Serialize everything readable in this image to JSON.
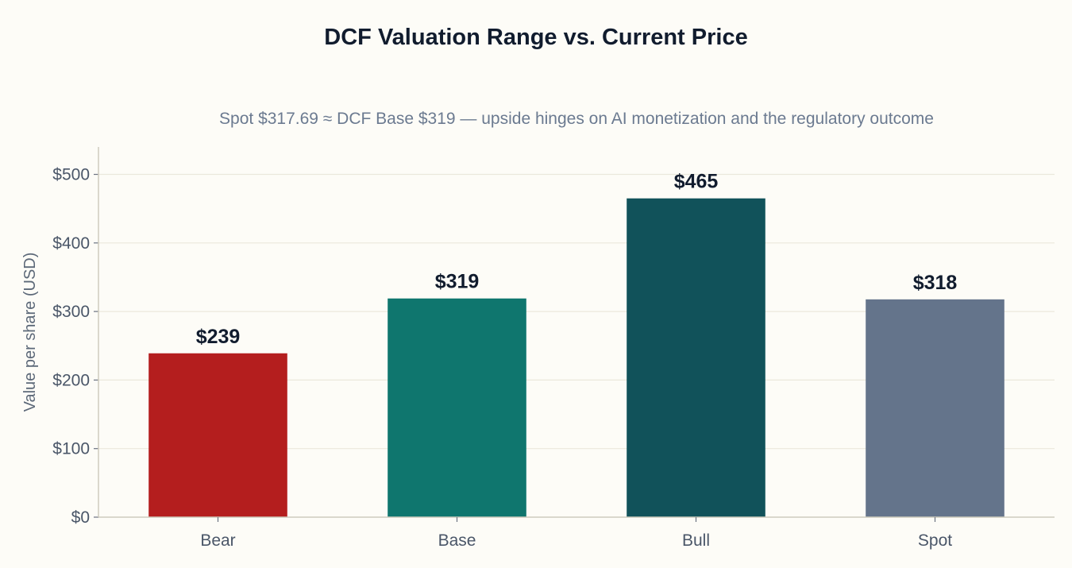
{
  "chart_data": {
    "type": "bar",
    "title": "DCF Valuation Range vs. Current Price",
    "subtitle": "Spot $317.69 ≈ DCF Base $319 — upside hinges on AI monetization and the regulatory outcome",
    "xlabel": "",
    "ylabel": "Value per share (USD)",
    "categories": [
      "Bear",
      "Base",
      "Bull",
      "Spot"
    ],
    "values": [
      239,
      319,
      465,
      317.69
    ],
    "data_labels": [
      "$239",
      "$319",
      "$465",
      "$318"
    ],
    "colors": [
      "#b41e1e",
      "#0f766e",
      "#11525a",
      "#64748b"
    ],
    "ylim": [
      0,
      540
    ],
    "yticks": [
      0,
      100,
      200,
      300,
      400,
      500
    ],
    "ytick_labels": [
      "$0",
      "$100",
      "$200",
      "$300",
      "$400",
      "$500"
    ],
    "grid": true,
    "legend": "none"
  }
}
